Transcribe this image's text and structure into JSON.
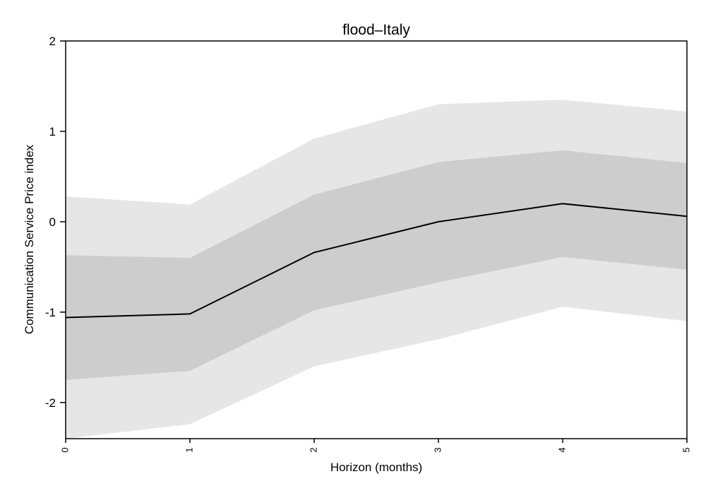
{
  "chart_data": {
    "type": "area",
    "title": "flood–Italy",
    "xlabel": "Horizon (months)",
    "ylabel": "Communication Service Price index",
    "x": [
      0,
      1,
      2,
      3,
      4,
      5
    ],
    "xlim": [
      0,
      5
    ],
    "ylim": [
      -2.4,
      2
    ],
    "x_ticks": [
      "0",
      "1",
      "2",
      "3",
      "4",
      "5"
    ],
    "y_ticks": [
      2,
      1,
      0,
      -1,
      -2
    ],
    "y_tick_labels": [
      "2",
      "1",
      "0",
      "-1",
      "-2"
    ],
    "grid": false,
    "series": [
      {
        "kind": "band",
        "lower": [
          -2.4,
          -2.24,
          -1.6,
          -1.3,
          -0.94,
          -1.1
        ],
        "upper": [
          0.28,
          0.19,
          0.92,
          1.3,
          1.35,
          1.22
        ],
        "color": "#e6e6e6"
      },
      {
        "kind": "band",
        "lower": [
          -1.75,
          -1.65,
          -0.98,
          -0.67,
          -0.39,
          -0.53
        ],
        "upper": [
          -0.37,
          -0.4,
          0.3,
          0.66,
          0.79,
          0.65
        ],
        "color": "#cdcdcd"
      },
      {
        "kind": "line",
        "values": [
          -1.06,
          -1.02,
          -0.34,
          0.0,
          0.2,
          0.06
        ],
        "color": "#000000"
      }
    ]
  }
}
